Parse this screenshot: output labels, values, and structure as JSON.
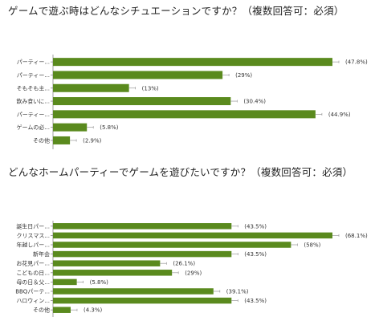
{
  "chart_data": [
    {
      "type": "bar",
      "orientation": "horizontal",
      "title": "ゲームで遊ぶ時はどんなシチュエーションですか？（複数回答可：必須）",
      "categories": [
        "パーティー...",
        "パーティー...",
        "そもそも主...",
        "飲み食いに...",
        "パーティー...",
        "ゲームの必...",
        "その他"
      ],
      "values": [
        47.8,
        29,
        13,
        30.4,
        44.9,
        5.8,
        2.9
      ],
      "value_labels": [
        "(47.8%)",
        "(29%)",
        "(13%)",
        "(30.4%)",
        "(44.9%)",
        "(5.8%)",
        "(2.9%)"
      ],
      "xlim": [
        0,
        47.8
      ],
      "bar_color": "#5a8a1e",
      "grid": false
    },
    {
      "type": "bar",
      "orientation": "horizontal",
      "title": "どんなホームパーティーでゲームを遊びたいですか？（複数回答可：必須）",
      "categories": [
        "誕生日パー...",
        "クリスマス...",
        "年越しパー...",
        "新年会",
        "お花見パー...",
        "こどもの日...",
        "母の日＆父...",
        "BBQパーテ...",
        "ハロウィン...",
        "その他"
      ],
      "values": [
        43.5,
        68.1,
        58,
        43.5,
        26.1,
        29,
        5.8,
        39.1,
        43.5,
        4.3
      ],
      "value_labels": [
        "(43.5%)",
        "(68.1%)",
        "(58%)",
        "(43.5%)",
        "(26.1%)",
        "(29%)",
        "(5.8%)",
        "(39.1%)",
        "(43.5%)",
        "(4.3%)"
      ],
      "xlim": [
        0,
        68.1
      ],
      "bar_color": "#5a8a1e",
      "grid": false
    }
  ]
}
